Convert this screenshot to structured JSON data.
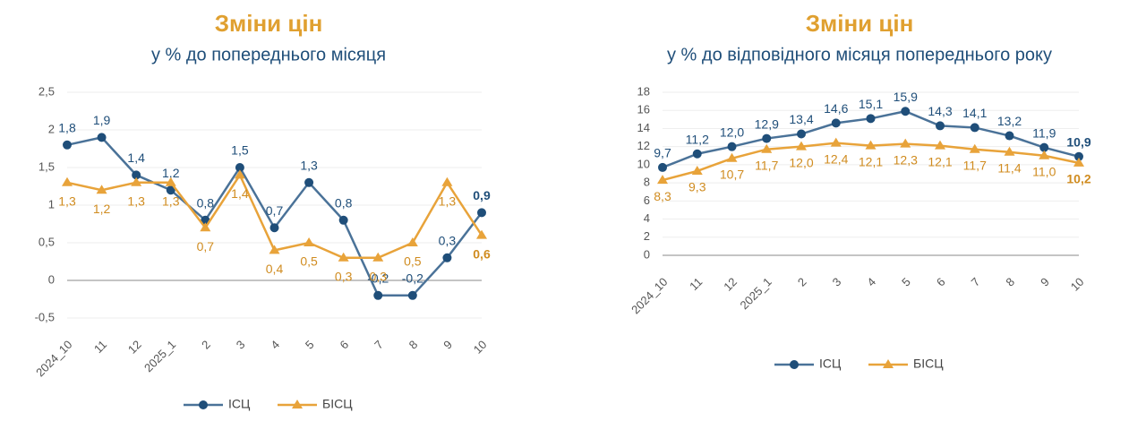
{
  "chart_data": [
    {
      "type": "line",
      "title": "Зміни цін",
      "subtitle": "у % до попереднього місяця",
      "categories": [
        "2024_10",
        "11",
        "12",
        "2025_1",
        "2",
        "3",
        "4",
        "5",
        "6",
        "7",
        "8",
        "9",
        "10"
      ],
      "ylim": [
        -0.5,
        2.5
      ],
      "yticks": [
        {
          "value": -0.5,
          "label": "-0,5"
        },
        0,
        {
          "value": 0.5,
          "label": "0,5"
        },
        1,
        {
          "value": 1.5,
          "label": "1,5"
        },
        2,
        {
          "value": 2.5,
          "label": "2,5"
        }
      ],
      "grid": true,
      "series": [
        {
          "name": "ІСЦ",
          "color": "#4a7298",
          "values": [
            1.8,
            1.9,
            1.4,
            1.2,
            0.8,
            1.5,
            0.7,
            1.3,
            0.8,
            -0.2,
            -0.2,
            0.3,
            0.9
          ],
          "value_labels": [
            "1,8",
            "1,9",
            "1,4",
            "1,2",
            "0,8",
            "1,5",
            "0,7",
            "1,3",
            "0,8",
            "-0,2",
            "-0,2",
            "0,3",
            "0,9"
          ]
        },
        {
          "name": "БІСЦ",
          "color": "#e8a33a",
          "values": [
            1.3,
            1.2,
            1.3,
            1.3,
            0.7,
            1.4,
            0.4,
            0.5,
            0.3,
            0.3,
            0.5,
            1.3,
            0.6
          ],
          "value_labels": [
            "1,3",
            "1,2",
            "1,3",
            "1,3",
            "0,7",
            "1,4",
            "0,4",
            "0,5",
            "0,3",
            "0,3",
            "0,5",
            "1,3",
            "0,6"
          ]
        }
      ]
    },
    {
      "type": "line",
      "title": "Зміни цін",
      "subtitle": "у % до відповідного місяця попереднього року",
      "categories": [
        "2024_10",
        "11",
        "12",
        "2025_1",
        "2",
        "3",
        "4",
        "5",
        "6",
        "7",
        "8",
        "9",
        "10"
      ],
      "ylim": [
        0,
        18
      ],
      "yticks": [
        0,
        2,
        4,
        6,
        8,
        10,
        12,
        14,
        16,
        18
      ],
      "grid": true,
      "series": [
        {
          "name": "ІСЦ",
          "color": "#4a7298",
          "values": [
            9.7,
            11.2,
            12.0,
            12.9,
            13.4,
            14.6,
            15.1,
            15.9,
            14.3,
            14.1,
            13.2,
            11.9,
            10.9
          ],
          "value_labels": [
            "9,7",
            "11,2",
            "12,0",
            "12,9",
            "13,4",
            "14,6",
            "15,1",
            "15,9",
            "14,3",
            "14,1",
            "13,2",
            "11,9",
            "10,9"
          ]
        },
        {
          "name": "БІСЦ",
          "color": "#e8a33a",
          "values": [
            8.3,
            9.3,
            10.7,
            11.7,
            12.0,
            12.4,
            12.1,
            12.3,
            12.1,
            11.7,
            11.4,
            11.0,
            10.2
          ],
          "value_labels": [
            "8,3",
            "9,3",
            "10,7",
            "11,7",
            "12,0",
            "12,4",
            "12,1",
            "12,3",
            "12,1",
            "11,7",
            "11,4",
            "11,0",
            "10,2"
          ]
        }
      ]
    }
  ]
}
